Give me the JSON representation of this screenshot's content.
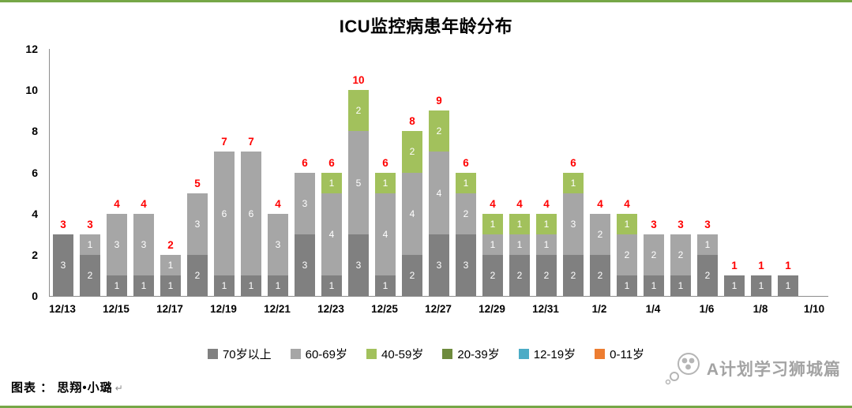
{
  "frame": {
    "border_color": "#76a747",
    "background": "#ffffff"
  },
  "header": {
    "title": "ICU监控病患年龄分布"
  },
  "footer": {
    "caption": "图表 ： 思翔•小璐",
    "caption_mark": "↵",
    "watermark": "A计划学习狮城篇"
  },
  "chart_data": {
    "type": "bar",
    "stacked": true,
    "title": "ICU监控病患年龄分布",
    "categories": [
      "12/13",
      "12/14",
      "12/15",
      "12/16",
      "12/17",
      "12/18",
      "12/19",
      "12/20",
      "12/21",
      "12/22",
      "12/23",
      "12/24",
      "12/25",
      "12/26",
      "12/27",
      "12/28",
      "12/29",
      "12/30",
      "12/31",
      "1/1",
      "1/2",
      "1/3",
      "1/4",
      "1/5",
      "1/6",
      "1/7",
      "1/8",
      "1/9",
      "1/10"
    ],
    "visible_x_tick_labels": [
      "12/13",
      "12/15",
      "12/17",
      "12/19",
      "12/21",
      "12/23",
      "12/25",
      "12/27",
      "12/29",
      "12/31",
      "1/2",
      "1/4",
      "1/6",
      "1/8",
      "1/10"
    ],
    "series": [
      {
        "name": "70岁以上",
        "color": "#808080",
        "values": [
          3,
          2,
          1,
          1,
          1,
          2,
          1,
          1,
          1,
          3,
          1,
          3,
          1,
          2,
          3,
          3,
          2,
          2,
          2,
          2,
          2,
          1,
          1,
          1,
          2,
          1,
          1,
          1,
          0
        ]
      },
      {
        "name": "60-69岁",
        "color": "#a6a6a6",
        "values": [
          0,
          1,
          3,
          3,
          1,
          3,
          6,
          6,
          3,
          3,
          4,
          5,
          4,
          4,
          4,
          2,
          1,
          1,
          1,
          3,
          2,
          2,
          2,
          2,
          1,
          0,
          0,
          0,
          0
        ]
      },
      {
        "name": "40-59岁",
        "color": "#a2c15c",
        "values": [
          0,
          0,
          0,
          0,
          0,
          0,
          0,
          0,
          0,
          0,
          1,
          2,
          1,
          2,
          2,
          1,
          1,
          1,
          1,
          1,
          0,
          1,
          0,
          0,
          0,
          0,
          0,
          0,
          0
        ]
      },
      {
        "name": "20-39岁",
        "color": "#6e8b3d",
        "values": [
          0,
          0,
          0,
          0,
          0,
          0,
          0,
          0,
          0,
          0,
          0,
          0,
          0,
          0,
          0,
          0,
          0,
          0,
          0,
          0,
          0,
          0,
          0,
          0,
          0,
          0,
          0,
          0,
          0
        ]
      },
      {
        "name": "12-19岁",
        "color": "#4bacc6",
        "values": [
          0,
          0,
          0,
          0,
          0,
          0,
          0,
          0,
          0,
          0,
          0,
          0,
          0,
          0,
          0,
          0,
          0,
          0,
          0,
          0,
          0,
          0,
          0,
          0,
          0,
          0,
          0,
          0,
          0
        ]
      },
      {
        "name": "0-11岁",
        "color": "#ed7d31",
        "values": [
          0,
          0,
          0,
          0,
          0,
          0,
          0,
          0,
          0,
          0,
          0,
          0,
          0,
          0,
          0,
          0,
          0,
          0,
          0,
          0,
          0,
          0,
          0,
          0,
          0,
          0,
          0,
          0,
          0
        ]
      }
    ],
    "totals": [
      3,
      3,
      4,
      4,
      2,
      5,
      7,
      7,
      4,
      6,
      6,
      10,
      6,
      8,
      9,
      6,
      4,
      4,
      4,
      6,
      4,
      4,
      3,
      3,
      3,
      1,
      1,
      1,
      0
    ],
    "y_ticks": [
      0,
      2,
      4,
      6,
      8,
      10,
      12
    ],
    "ylim": [
      0,
      12
    ],
    "grid": false,
    "legend_position": "bottom",
    "total_label_color": "#ff0000",
    "bar_label_color": "#ffffff",
    "axis_color": "#8c8c8c"
  }
}
